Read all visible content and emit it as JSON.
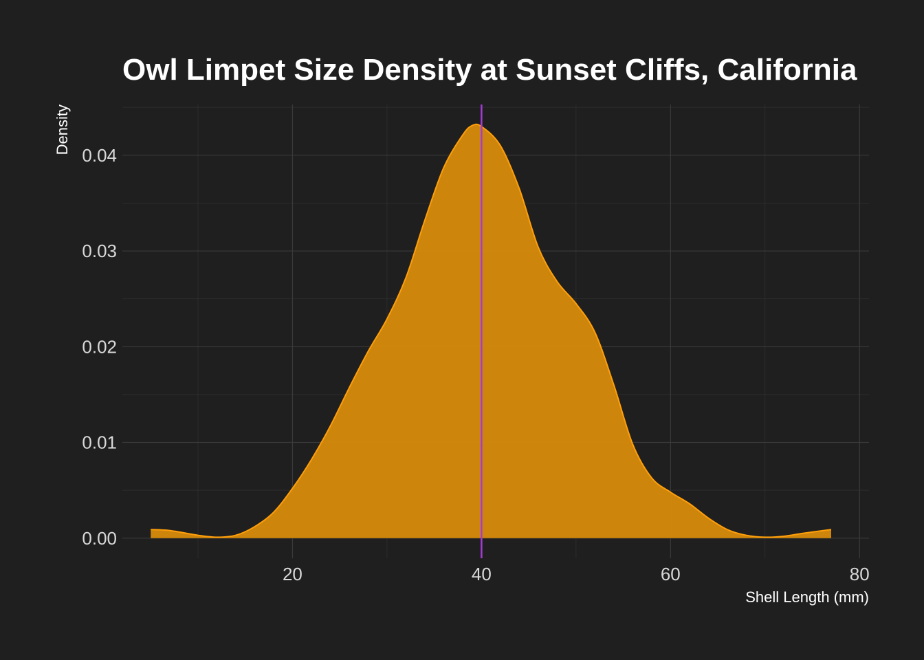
{
  "colors": {
    "background": "#1f1f1f",
    "grid_major": "#3a3a3a",
    "grid_minor": "#2c2c2c",
    "fill": "#d4880a",
    "outline": "#ff9f0a",
    "vline": "#a53bd6",
    "text": "#ffffff",
    "tick_text": "#d9d9d9"
  },
  "chart_data": {
    "type": "area",
    "title": "Owl Limpet Size Density at Sunset Cliffs, California",
    "xlabel": "Shell Length (mm)",
    "ylabel": "Density",
    "xlim": [
      2,
      81
    ],
    "ylim": [
      -0.0021,
      0.0453
    ],
    "x_ticks": [
      20,
      40,
      60,
      80
    ],
    "y_ticks": [
      0.0,
      0.01,
      0.02,
      0.03,
      0.04
    ],
    "x_tick_labels": [
      "20",
      "40",
      "60",
      "80"
    ],
    "y_tick_labels": [
      "0.00",
      "0.01",
      "0.02",
      "0.03",
      "0.04"
    ],
    "grid": true,
    "legend": "none",
    "vertical_line": {
      "x": 40
    },
    "series": [
      {
        "x": [
          5,
          7,
          10,
          12,
          14,
          16,
          18,
          20,
          22,
          24,
          26,
          28,
          30,
          32,
          34,
          36,
          38,
          39,
          40,
          42,
          44,
          46,
          48,
          50,
          52,
          54,
          56,
          58,
          60,
          62,
          64,
          66,
          68,
          70,
          72,
          74,
          77
        ],
        "y": [
          0.0009,
          0.0008,
          0.0003,
          0.0001,
          0.0003,
          0.0012,
          0.0027,
          0.0052,
          0.0082,
          0.0117,
          0.0157,
          0.0195,
          0.0229,
          0.0272,
          0.0332,
          0.0387,
          0.0421,
          0.0431,
          0.043,
          0.041,
          0.0365,
          0.0304,
          0.0268,
          0.0245,
          0.0215,
          0.016,
          0.0098,
          0.0063,
          0.0048,
          0.0036,
          0.0021,
          0.0009,
          0.0003,
          0.0001,
          0.0002,
          0.0005,
          0.0009
        ]
      }
    ]
  }
}
